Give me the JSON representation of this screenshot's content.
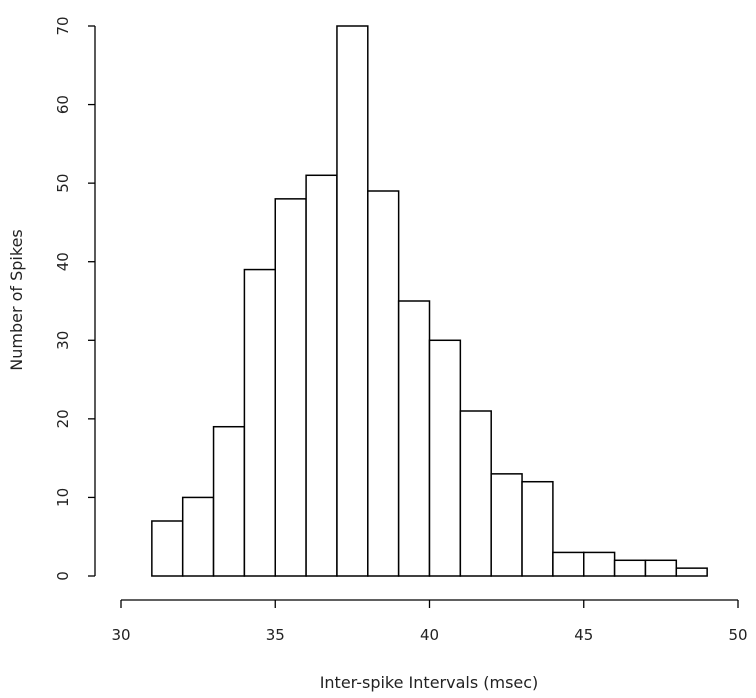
{
  "chart_data": {
    "type": "bar",
    "subtype": "histogram",
    "title": "",
    "xlabel": "Inter-spike Intervals (msec)",
    "ylabel": "Number of Spikes",
    "bins": [
      {
        "start": 31,
        "end": 32,
        "count": 7
      },
      {
        "start": 32,
        "end": 33,
        "count": 10
      },
      {
        "start": 33,
        "end": 34,
        "count": 19
      },
      {
        "start": 34,
        "end": 35,
        "count": 39
      },
      {
        "start": 35,
        "end": 36,
        "count": 48
      },
      {
        "start": 36,
        "end": 37,
        "count": 51
      },
      {
        "start": 37,
        "end": 38,
        "count": 70
      },
      {
        "start": 38,
        "end": 39,
        "count": 49
      },
      {
        "start": 39,
        "end": 40,
        "count": 35
      },
      {
        "start": 40,
        "end": 41,
        "count": 30
      },
      {
        "start": 41,
        "end": 42,
        "count": 21
      },
      {
        "start": 42,
        "end": 43,
        "count": 13
      },
      {
        "start": 43,
        "end": 44,
        "count": 12
      },
      {
        "start": 44,
        "end": 45,
        "count": 3
      },
      {
        "start": 45,
        "end": 46,
        "count": 3
      },
      {
        "start": 46,
        "end": 47,
        "count": 2
      },
      {
        "start": 47,
        "end": 48,
        "count": 2
      },
      {
        "start": 48,
        "end": 49,
        "count": 1
      }
    ],
    "xlim": [
      30,
      50
    ],
    "ylim": [
      0,
      70
    ],
    "x_ticks": [
      "30",
      "35",
      "40",
      "45",
      "50"
    ],
    "y_ticks": [
      "0",
      "10",
      "20",
      "30",
      "40",
      "50",
      "60",
      "70"
    ],
    "grid": false,
    "legend": "none",
    "bar_fill": "#ffffff",
    "bar_stroke": "#000000"
  }
}
